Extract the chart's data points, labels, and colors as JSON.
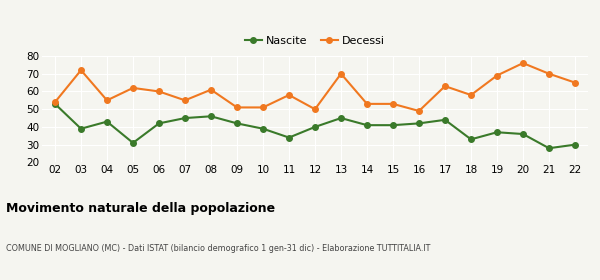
{
  "years": [
    "02",
    "03",
    "04",
    "05",
    "06",
    "07",
    "08",
    "09",
    "10",
    "11",
    "12",
    "13",
    "14",
    "15",
    "16",
    "17",
    "18",
    "19",
    "20",
    "21",
    "22"
  ],
  "nascite": [
    53,
    39,
    43,
    31,
    42,
    45,
    46,
    42,
    39,
    34,
    40,
    45,
    41,
    41,
    42,
    44,
    33,
    37,
    36,
    28,
    30
  ],
  "decessi": [
    54,
    72,
    55,
    62,
    60,
    55,
    61,
    51,
    51,
    58,
    50,
    70,
    53,
    53,
    49,
    63,
    58,
    69,
    76,
    70,
    65
  ],
  "nascite_color": "#3a7a2a",
  "decessi_color": "#f07820",
  "background_color": "#f5f5f0",
  "ylim": [
    20,
    80
  ],
  "yticks": [
    20,
    30,
    40,
    50,
    60,
    70,
    80
  ],
  "title": "Movimento naturale della popolazione",
  "subtitle": "COMUNE DI MOGLIANO (MC) - Dati ISTAT (bilancio demografico 1 gen-31 dic) - Elaborazione TUTTITALIA.IT",
  "legend_nascite": "Nascite",
  "legend_decessi": "Decessi",
  "marker_size": 4,
  "line_width": 1.5
}
